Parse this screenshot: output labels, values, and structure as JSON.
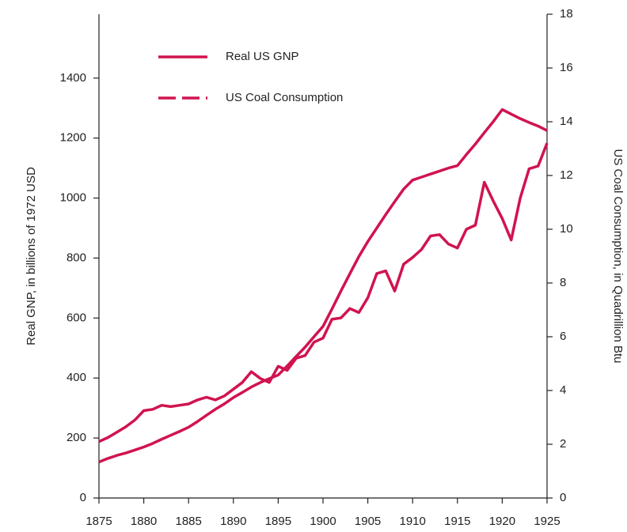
{
  "chart_data": {
    "type": "line",
    "x": [
      1875,
      1876,
      1877,
      1878,
      1879,
      1880,
      1881,
      1882,
      1883,
      1884,
      1885,
      1886,
      1887,
      1888,
      1889,
      1890,
      1891,
      1892,
      1893,
      1894,
      1895,
      1896,
      1897,
      1898,
      1899,
      1900,
      1901,
      1902,
      1903,
      1904,
      1905,
      1906,
      1907,
      1908,
      1909,
      1910,
      1911,
      1912,
      1913,
      1914,
      1915,
      1916,
      1917,
      1918,
      1919,
      1920,
      1921,
      1922,
      1923,
      1924,
      1925
    ],
    "series": [
      {
        "name": "Real US GNP",
        "color": "#d1134f",
        "axis": "y",
        "values": [
          120,
          132,
          142,
          150,
          160,
          170,
          182,
          196,
          209,
          222,
          236,
          255,
          276,
          296,
          314,
          335,
          352,
          370,
          385,
          398,
          410,
          440,
          472,
          503,
          538,
          572,
          630,
          690,
          748,
          805,
          855,
          900,
          945,
          988,
          1030,
          1060,
          1070,
          1080,
          1090,
          1100,
          1108,
          1145,
          1180,
          1218,
          1255,
          1295,
          1280,
          1265,
          1252,
          1240,
          1225
        ]
      },
      {
        "name": "US Coal Consumption",
        "color": "#d1134f",
        "axis": "y2",
        "values": [
          2.1,
          2.25,
          2.45,
          2.65,
          2.9,
          3.25,
          3.3,
          3.45,
          3.4,
          3.45,
          3.5,
          3.65,
          3.75,
          3.65,
          3.8,
          4.05,
          4.3,
          4.7,
          4.45,
          4.3,
          4.9,
          4.75,
          5.2,
          5.3,
          5.8,
          5.95,
          6.65,
          6.7,
          7.05,
          6.9,
          7.45,
          8.35,
          8.45,
          7.7,
          8.7,
          8.95,
          9.25,
          9.75,
          9.8,
          9.45,
          9.3,
          10.0,
          10.15,
          11.75,
          11.05,
          10.4,
          9.6,
          11.15,
          12.25,
          12.35,
          13.2
        ]
      }
    ],
    "y_label": "Real GNP, in billions of 1972 USD",
    "y2_label": "US Coal Consumption, in Quadrillion Btu",
    "xlim": [
      1875,
      1925
    ],
    "xticks": [
      1875,
      1880,
      1885,
      1890,
      1895,
      1900,
      1905,
      1910,
      1915,
      1920,
      1925
    ],
    "ylim": [
      0,
      1500
    ],
    "yticks": [
      0,
      200,
      400,
      600,
      800,
      1000,
      1200,
      1400
    ],
    "y2lim": [
      0,
      18
    ],
    "y2ticks": [
      0,
      2,
      4,
      6,
      8,
      10,
      12,
      14,
      16,
      18
    ],
    "grid": false,
    "legend": "upper left"
  }
}
